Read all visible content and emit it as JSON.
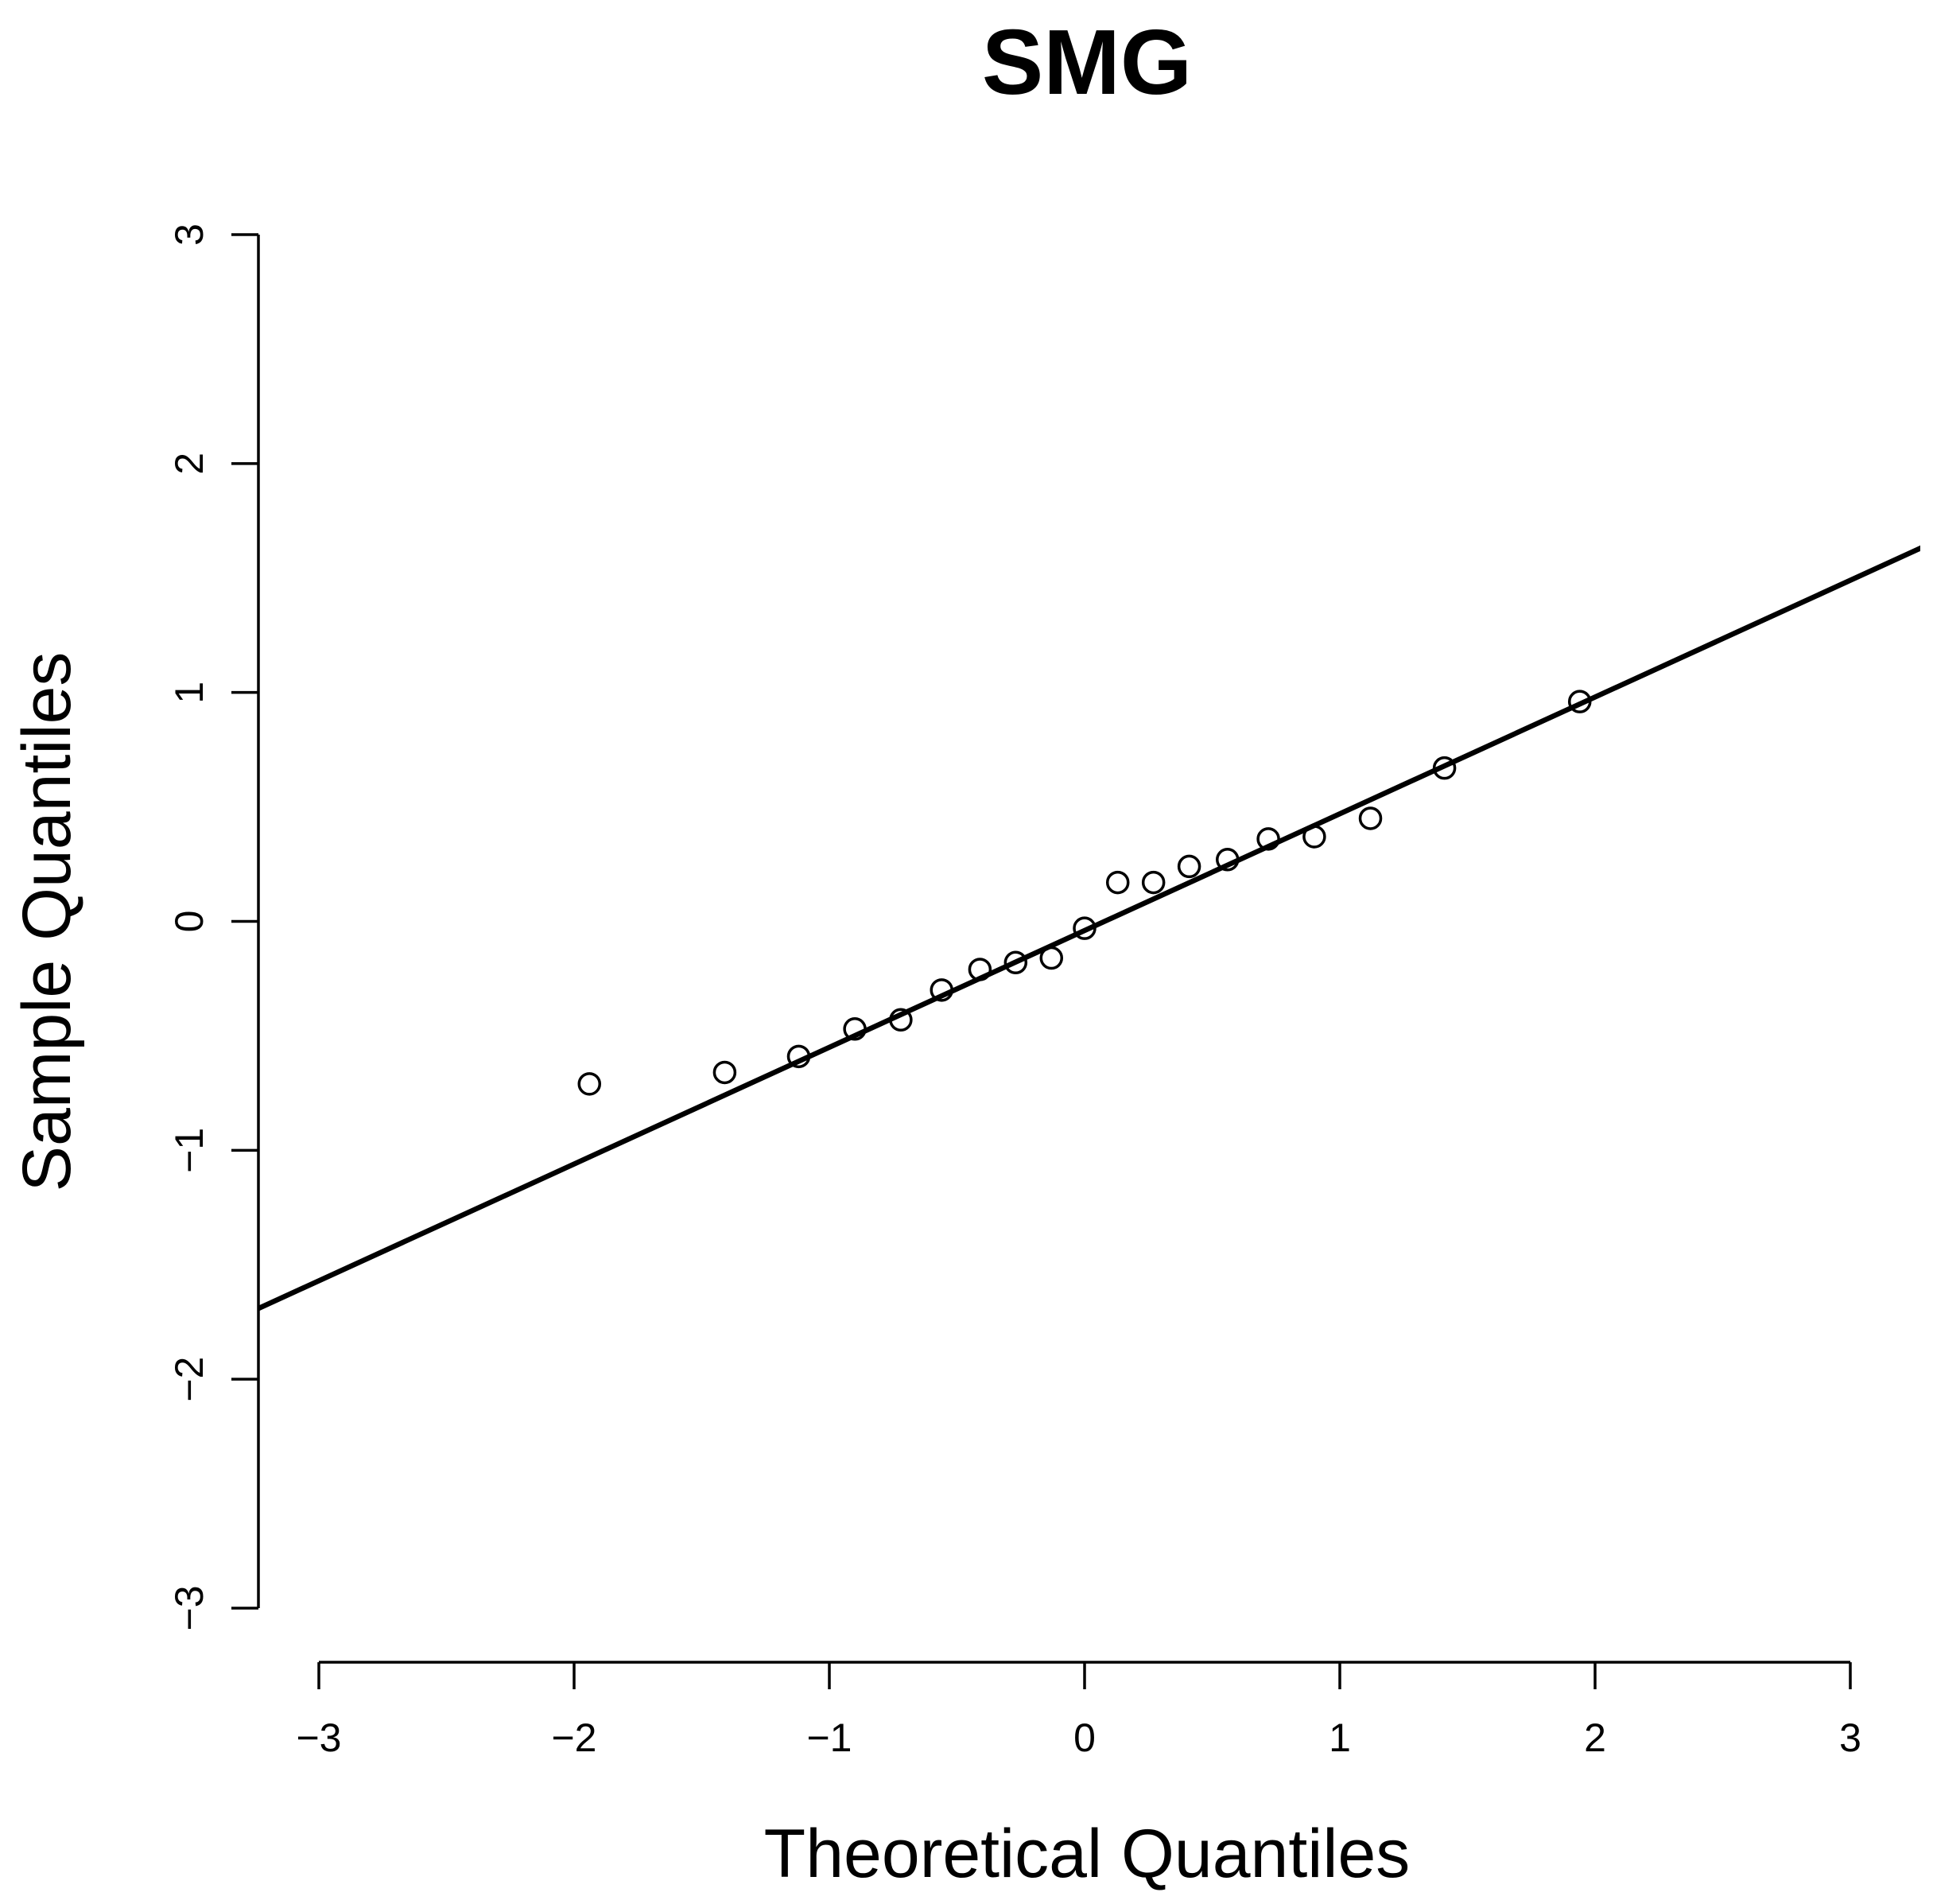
{
  "chart_data": {
    "type": "scatter",
    "title": "SMG",
    "xlabel": "Theoretical Quantiles",
    "ylabel": "Sample Quantiles",
    "xlim": [
      -3,
      3
    ],
    "ylim": [
      -3,
      3
    ],
    "x_ticks": [
      -3,
      -2,
      -1,
      0,
      1,
      2,
      3
    ],
    "y_ticks": [
      -3,
      -2,
      -1,
      0,
      1,
      2,
      3
    ],
    "x_tick_labels": [
      "−3",
      "−2",
      "−1",
      "0",
      "1",
      "2",
      "3"
    ],
    "y_tick_labels": [
      "−3",
      "−2",
      "−1",
      "0",
      "1",
      "2",
      "3"
    ],
    "grid": false,
    "marker": "open-circle",
    "series": [
      {
        "x": [
          -1.94,
          -1.41,
          -1.12,
          -0.9,
          -0.72,
          -0.56,
          -0.41,
          -0.27,
          -0.13,
          0.0,
          0.13,
          0.27,
          0.41,
          0.56,
          0.72,
          0.9,
          1.12,
          1.41,
          1.94
        ],
        "y": [
          -0.71,
          -0.66,
          -0.59,
          -0.47,
          -0.43,
          -0.3,
          -0.21,
          -0.18,
          -0.16,
          -0.03,
          0.17,
          0.17,
          0.24,
          0.27,
          0.36,
          0.37,
          0.45,
          0.67,
          0.96
        ]
      }
    ],
    "reference_line": {
      "intercept": -0.04,
      "slope": 0.51
    }
  }
}
